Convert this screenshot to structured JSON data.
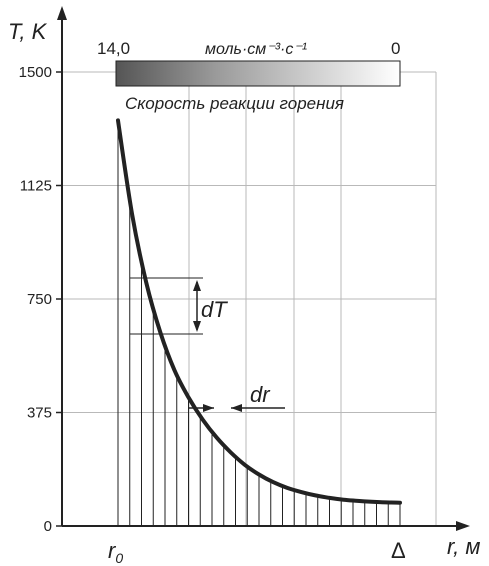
{
  "chart_data": {
    "type": "line",
    "y_axis_label": "T, K",
    "x_axis_label": "r, м",
    "y_ticks": [
      "0",
      "375",
      "750",
      "1125",
      "1500"
    ],
    "y_tick_values": [
      0,
      375,
      750,
      1125,
      1500
    ],
    "ylim": [
      0,
      1500
    ],
    "x_tick_labels": [
      "r0",
      "Δ"
    ],
    "x_tick_label_main": "r",
    "x_tick_label_sub": "0",
    "x_tick_label_end": "Δ",
    "xlim": [
      0,
      1
    ],
    "grid": true,
    "series": [
      {
        "x": [
          0.0,
          0.05,
          0.1,
          0.15,
          0.2,
          0.25,
          0.3,
          0.35,
          0.4,
          0.45,
          0.5,
          0.55,
          0.6,
          0.65,
          0.7,
          0.75,
          0.8,
          0.85,
          0.9,
          0.95,
          1.0
        ],
        "y": [
          1340,
          1030,
          805,
          640,
          515,
          425,
          352,
          292,
          243,
          202,
          170,
          145,
          126,
          112,
          101,
          93,
          87,
          83,
          80,
          78,
          77
        ]
      }
    ],
    "hatch_count": 24,
    "annotations": {
      "dT_label": "dT",
      "dr_label": "dr"
    },
    "colorbar": {
      "min_label": "14,0",
      "max_label": "0",
      "units_label": "моль·см⁻³·с⁻¹",
      "caption": "Скорость реакции горения",
      "color_high": "#555555",
      "color_low": "#ffffff"
    }
  }
}
